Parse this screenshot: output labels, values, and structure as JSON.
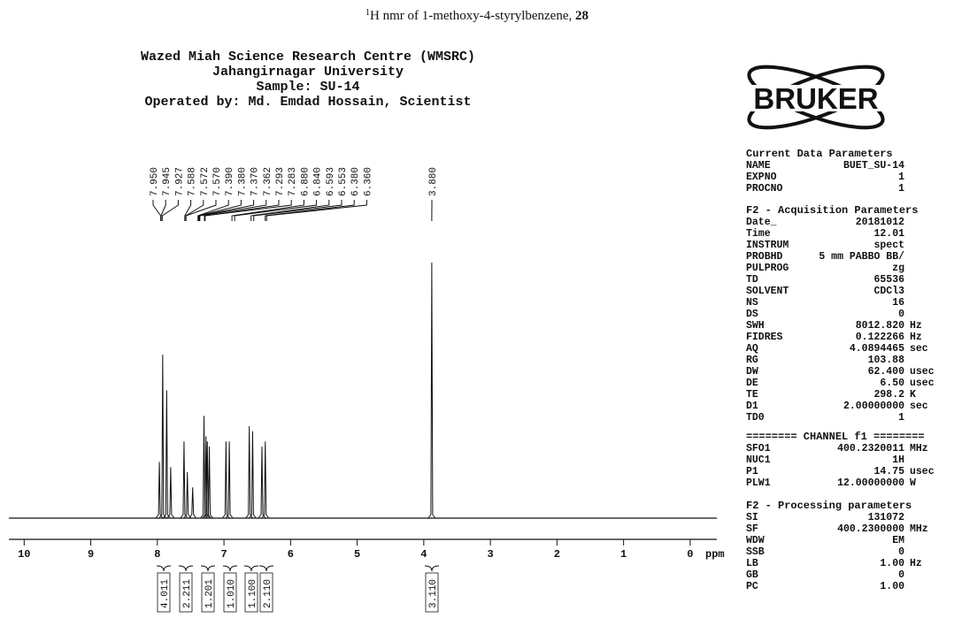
{
  "caption": {
    "superscript": "1",
    "text": "H nmr of 1-methoxy-4-styrylbenzene, ",
    "bold": "28"
  },
  "header": [
    "Wazed Miah Science Research Centre (WMSRC)",
    "Jahangirnagar University",
    "Sample: SU-14",
    "Operated by: Md. Emdad Hossain, Scientist"
  ],
  "logo": "BRUKER",
  "spectrum": {
    "x_label": "ppm",
    "xlim": [
      10.23,
      -0.4
    ],
    "xticks": [
      10,
      9,
      8,
      7,
      6,
      5,
      4,
      3,
      2,
      1,
      0
    ],
    "ylim": [
      0,
      100
    ],
    "peaks": {
      "x": [
        7.97,
        7.92,
        7.86,
        7.8,
        7.6,
        7.55,
        7.47,
        7.3,
        7.27,
        7.25,
        7.22,
        6.97,
        6.92,
        6.62,
        6.57,
        6.43,
        6.38,
        3.88
      ],
      "values": [
        22,
        64,
        50,
        20,
        30,
        18,
        12,
        40,
        32,
        30,
        28,
        30,
        30,
        36,
        34,
        28,
        30,
        100
      ]
    },
    "peak_labels": [
      {
        "value": 7.95,
        "label": "7.950"
      },
      {
        "value": 7.945,
        "label": "7.945"
      },
      {
        "value": 7.927,
        "label": "7.927"
      },
      {
        "value": 7.588,
        "label": "7.588"
      },
      {
        "value": 7.572,
        "label": "7.572"
      },
      {
        "value": 7.57,
        "label": "7.570"
      },
      {
        "value": 7.39,
        "label": "7.390"
      },
      {
        "value": 7.38,
        "label": "7.380"
      },
      {
        "value": 7.37,
        "label": "7.370"
      },
      {
        "value": 7.362,
        "label": "7.362"
      },
      {
        "value": 7.293,
        "label": "7.293"
      },
      {
        "value": 7.283,
        "label": "7.283"
      },
      {
        "value": 6.88,
        "label": "6.880"
      },
      {
        "value": 6.84,
        "label": "6.840"
      },
      {
        "value": 6.593,
        "label": "6.593"
      },
      {
        "value": 6.553,
        "label": "6.553"
      },
      {
        "value": 6.38,
        "label": "6.380"
      },
      {
        "value": 6.36,
        "label": "6.360"
      },
      {
        "value": 3.88,
        "label": "3.880"
      }
    ],
    "integrals": [
      "4.011",
      "2.211",
      "1.201",
      "1.010",
      "1.100",
      "2.110",
      "3.110"
    ]
  },
  "parameters": [
    {
      "title": "Current Data Parameters",
      "rows": [
        [
          "NAME",
          "BUET_SU-14",
          ""
        ],
        [
          "EXPNO",
          "1",
          ""
        ],
        [
          "PROCNO",
          "1",
          ""
        ]
      ]
    },
    {
      "title": "F2 - Acquisition Parameters",
      "rows": [
        [
          "Date_",
          "20181012",
          ""
        ],
        [
          "Time",
          "12.01",
          ""
        ],
        [
          "INSTRUM",
          "spect",
          ""
        ],
        [
          "PROBHD",
          "5 mm PABBO BB/",
          ""
        ],
        [
          "PULPROG",
          "zg",
          ""
        ],
        [
          "TD",
          "65536",
          ""
        ],
        [
          "SOLVENT",
          "CDCl3",
          ""
        ],
        [
          "NS",
          "16",
          ""
        ],
        [
          "DS",
          "0",
          ""
        ],
        [
          "SWH",
          "8012.820",
          "Hz"
        ],
        [
          "FIDRES",
          "0.122266",
          "Hz"
        ],
        [
          "AQ",
          "4.0894465",
          "sec"
        ],
        [
          "RG",
          "103.88",
          ""
        ],
        [
          "DW",
          "62.400",
          "usec"
        ],
        [
          "DE",
          "6.50",
          "usec"
        ],
        [
          "TE",
          "298.2",
          "K"
        ],
        [
          "D1",
          "2.00000000",
          "sec"
        ],
        [
          "TD0",
          "1",
          ""
        ]
      ]
    },
    {
      "title": "======== CHANNEL f1 ========",
      "rows": [
        [
          "SFO1",
          "400.2320011",
          "MHz"
        ],
        [
          "NUC1",
          "1H",
          ""
        ],
        [
          "P1",
          "14.75",
          "usec"
        ],
        [
          "PLW1",
          "12.00000000",
          "W"
        ]
      ]
    },
    {
      "title": "F2 - Processing parameters",
      "rows": [
        [
          "SI",
          "131072",
          ""
        ],
        [
          "SF",
          "400.2300000",
          "MHz"
        ],
        [
          "WDW",
          "EM",
          ""
        ],
        [
          "SSB",
          "0",
          ""
        ],
        [
          "LB",
          "1.00",
          "Hz"
        ],
        [
          "GB",
          "0",
          ""
        ],
        [
          "PC",
          "1.00",
          ""
        ]
      ]
    }
  ]
}
